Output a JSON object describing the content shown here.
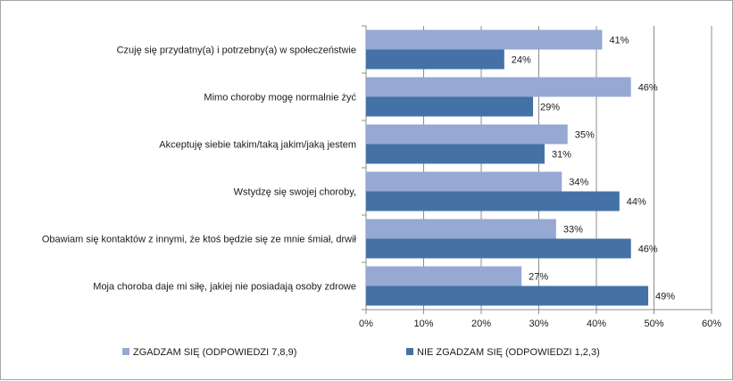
{
  "chart_data": {
    "type": "bar",
    "orientation": "horizontal",
    "categories": [
      "Czuję się przydatny(a) i potrzebny(a) w społeczeństwie",
      "Mimo choroby mogę normalnie żyć",
      "Akceptuję siebie takim/taką jakim/jaką jestem",
      "Wstydzę się swojej choroby,",
      "Obawiam się kontaktów z innymi, że ktoś będzie się ze mnie śmiał, drwił",
      "Moja choroba daje mi siłę, jakiej nie posiadają osoby zdrowe"
    ],
    "series": [
      {
        "name": "ZGADZAM SIĘ (ODPOWIEDZI 7,8,9)",
        "color": "#95a9d2",
        "values": [
          41,
          46,
          35,
          34,
          33,
          27
        ],
        "labels": [
          "41%",
          "46%",
          "35%",
          "34%",
          "33%",
          "27%"
        ]
      },
      {
        "name": "NIE ZGADZAM SIĘ (ODPOWIEDZI 1,2,3)",
        "color": "#4471a6",
        "values": [
          24,
          29,
          31,
          44,
          46,
          49
        ],
        "labels": [
          "24%",
          "29%",
          "31%",
          "44%",
          "46%",
          "49%"
        ]
      }
    ],
    "xlim": [
      0,
      60
    ],
    "ticks": [
      0,
      10,
      20,
      30,
      40,
      50,
      60
    ],
    "tick_labels": [
      "0%",
      "10%",
      "20%",
      "30%",
      "40%",
      "50%",
      "60%"
    ],
    "grid": true,
    "legend": "bottom",
    "title": "",
    "xlabel": "",
    "ylabel": ""
  }
}
